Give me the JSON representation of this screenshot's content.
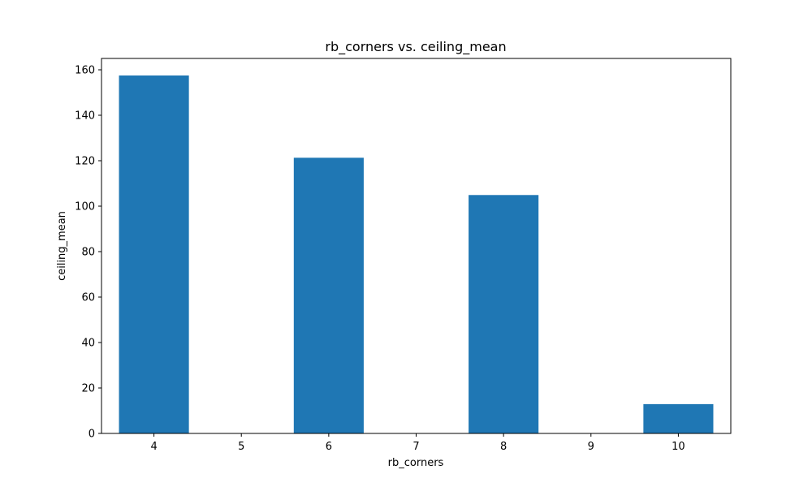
{
  "chart_data": {
    "type": "bar",
    "title": "rb_corners vs. ceiling_mean",
    "xlabel": "rb_corners",
    "ylabel": "ceiling_mean",
    "x_ticks": [
      "4",
      "5",
      "6",
      "7",
      "8",
      "9",
      "10"
    ],
    "x_range": [
      3.4,
      10.6
    ],
    "y_ticks": [
      "0",
      "20",
      "40",
      "60",
      "80",
      "100",
      "120",
      "140",
      "160"
    ],
    "ylim": [
      0,
      165
    ],
    "bar_width": 0.8,
    "x": [
      4,
      6,
      8,
      10
    ],
    "values": [
      157.5,
      121.3,
      104.9,
      12.9
    ],
    "bar_color": "#1f77b4",
    "grid": false,
    "legend": "none"
  }
}
